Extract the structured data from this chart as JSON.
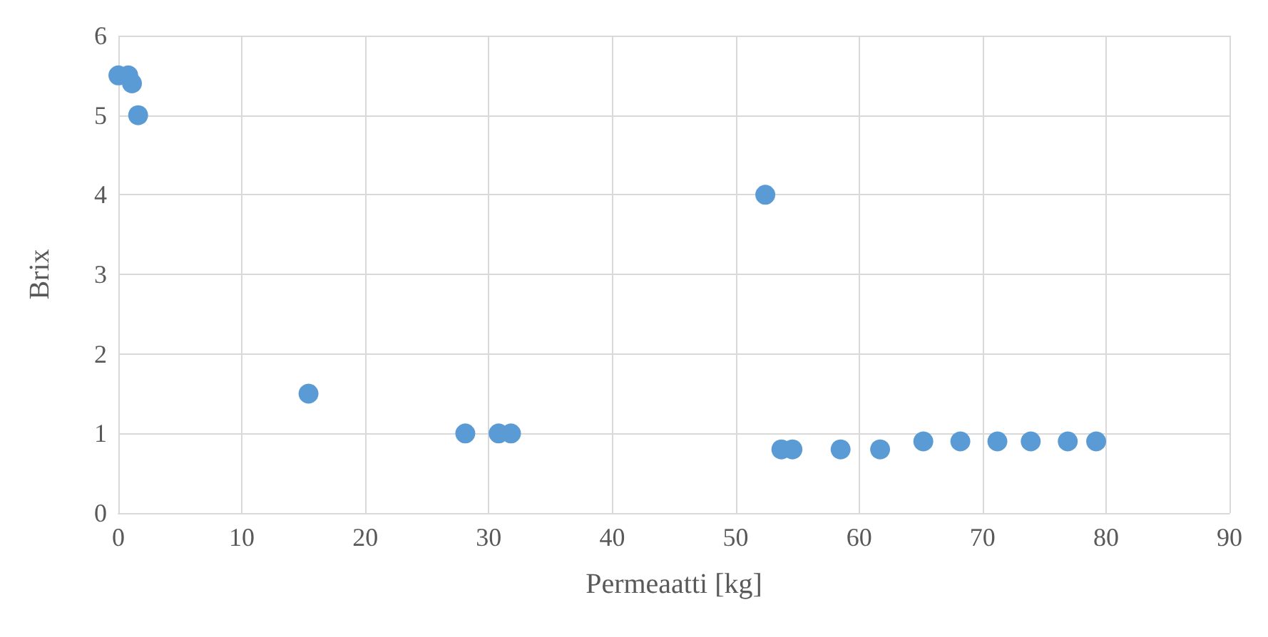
{
  "chart_data": {
    "type": "scatter",
    "xlabel": "Permeaatti [kg]",
    "ylabel": "Brix",
    "x": [
      0,
      0.8,
      1.1,
      1.6,
      15.4,
      28.1,
      30.8,
      31.8,
      52.4,
      53.7,
      54.6,
      58.5,
      61.7,
      65.2,
      68.2,
      71.2,
      73.9,
      76.9,
      79.2
    ],
    "series": [
      {
        "color": "#5b9bd5",
        "values": [
          5.5,
          5.5,
          5.4,
          5.0,
          1.5,
          1.0,
          1.0,
          1.0,
          4.0,
          0.8,
          0.8,
          0.8,
          0.8,
          0.9,
          0.9,
          0.9,
          0.9,
          0.9,
          0.9
        ]
      }
    ],
    "xlim": [
      0,
      90
    ],
    "xticks": [
      0,
      10,
      20,
      30,
      40,
      50,
      60,
      70,
      80,
      90
    ],
    "ylim": [
      0,
      6
    ],
    "yticks": [
      0,
      1,
      2,
      3,
      4,
      5,
      6
    ],
    "grid": true,
    "marker": "circle"
  }
}
